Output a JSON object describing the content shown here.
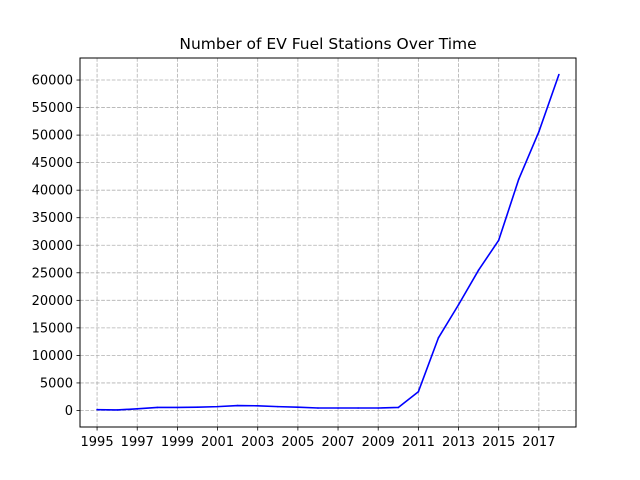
{
  "chart_data": {
    "type": "line",
    "title": "Number of EV Fuel Stations Over Time",
    "xlabel": "",
    "ylabel": "",
    "xlim": [
      1994.15,
      2018.85
    ],
    "ylim": [
      -3000,
      64000
    ],
    "grid": true,
    "x_ticks": [
      1995,
      1997,
      1999,
      2001,
      2003,
      2005,
      2007,
      2009,
      2011,
      2013,
      2015,
      2017
    ],
    "y_ticks": [
      0,
      5000,
      10000,
      15000,
      20000,
      25000,
      30000,
      35000,
      40000,
      45000,
      50000,
      55000,
      60000
    ],
    "series": [
      {
        "name": "",
        "color": "#0000ff",
        "x": [
          1995,
          1996,
          1997,
          1998,
          1999,
          2000,
          2001,
          2002,
          2003,
          2004,
          2005,
          2006,
          2007,
          2008,
          2009,
          2010,
          2011,
          2012,
          2013,
          2014,
          2015,
          2016,
          2017,
          2018
        ],
        "y": [
          150,
          100,
          300,
          550,
          550,
          600,
          700,
          900,
          850,
          700,
          600,
          450,
          450,
          450,
          450,
          550,
          3400,
          13200,
          19200,
          25500,
          30900,
          42000,
          50600,
          61000
        ]
      }
    ]
  }
}
